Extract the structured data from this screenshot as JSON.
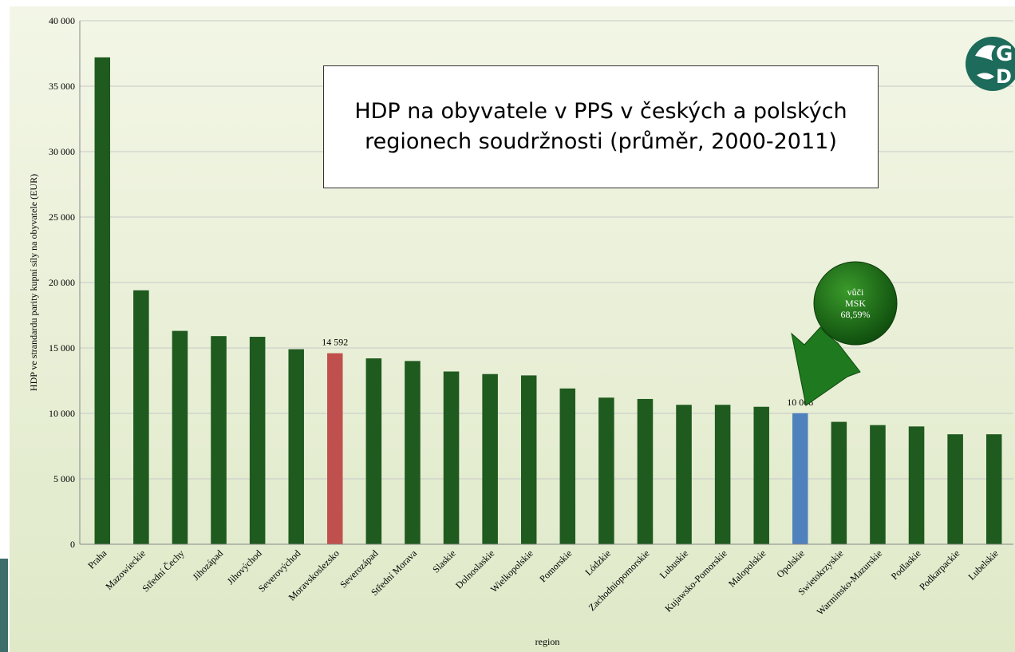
{
  "chart_data": {
    "type": "bar",
    "title": "HDP na obyvatele v PPS v českých a polských regionech soudržnosti (průměr, 2000-2011)",
    "y_label": "HDP ve strandardu parity kupní síly na obyvatele (EUR)",
    "x_label": "region",
    "categories": [
      "Praha",
      "Mazowieckie",
      "Střední Čechy",
      "Jihozápad",
      "Jihovýchod",
      "Severovýchod",
      "Moravskoslezsko",
      "Severozápad",
      "Střední Morava",
      "Slaskie",
      "Dolnoslaskie",
      "Wielkopolskie",
      "Pomorskie",
      "Lódzkie",
      "Zachodniopomorskie",
      "Lubuskie",
      "Kujawsko-Pomorskie",
      "Malopolskie",
      "Opolskie",
      "Swietokrzyskie",
      "Warminsko-Mazurskie",
      "Podlaskie",
      "Podkarpackie",
      "Lubelskie"
    ],
    "values": [
      37200,
      19400,
      16300,
      15900,
      15850,
      14900,
      14592,
      14200,
      14000,
      13200,
      13000,
      12900,
      11900,
      11200,
      11100,
      10650,
      10650,
      10500,
      10008,
      9350,
      9100,
      9000,
      8400,
      8400
    ],
    "value_labels": [
      null,
      null,
      null,
      null,
      null,
      null,
      "14 592",
      null,
      null,
      null,
      null,
      null,
      null,
      null,
      null,
      null,
      null,
      null,
      "10 008",
      null,
      null,
      null,
      null,
      null
    ],
    "colors": [
      "#1f5a1f",
      "#1f5a1f",
      "#1f5a1f",
      "#1f5a1f",
      "#1f5a1f",
      "#1f5a1f",
      "#c0504d",
      "#1f5a1f",
      "#1f5a1f",
      "#1f5a1f",
      "#1f5a1f",
      "#1f5a1f",
      "#1f5a1f",
      "#1f5a1f",
      "#1f5a1f",
      "#1f5a1f",
      "#1f5a1f",
      "#1f5a1f",
      "#4f81bd",
      "#1f5a1f",
      "#1f5a1f",
      "#1f5a1f",
      "#1f5a1f",
      "#1f5a1f"
    ],
    "ylim": [
      0,
      40000
    ],
    "yticks": [
      0,
      {
        "value": 5000,
        "label": "5 000"
      },
      {
        "value": 10000,
        "label": "10 000"
      },
      {
        "value": 15000,
        "label": "15 000"
      },
      {
        "value": 20000,
        "label": "20 000"
      },
      {
        "value": 25000,
        "label": "25 000"
      },
      {
        "value": 30000,
        "label": "30 000"
      },
      {
        "value": 35000,
        "label": "35 000"
      },
      {
        "value": 40000,
        "label": "40 000"
      }
    ],
    "grid": true,
    "callout": [
      "vůči",
      "MSK",
      "68,59%"
    ]
  }
}
